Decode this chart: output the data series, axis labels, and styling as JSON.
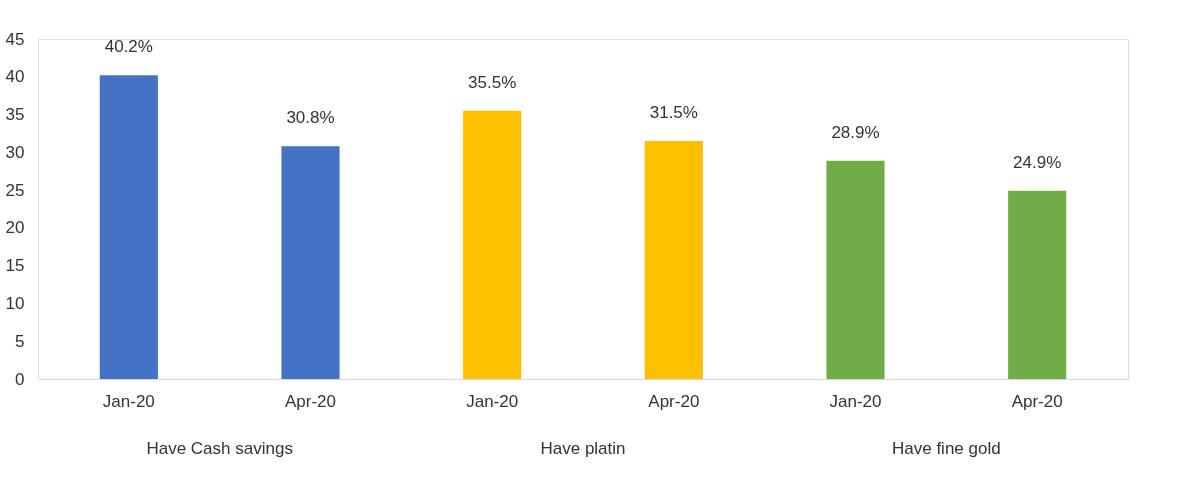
{
  "chart_data": {
    "type": "bar",
    "categories": [
      "Jan-20",
      "Apr-20",
      "Jan-20",
      "Apr-20",
      "Jan-20",
      "Apr-20"
    ],
    "values": [
      40.2,
      30.8,
      35.5,
      31.5,
      28.9,
      24.9
    ],
    "colors": [
      "#4472c4",
      "#4472c4",
      "#ffc000",
      "#ffc000",
      "#70ad47",
      "#70ad47"
    ],
    "value_labels": [
      "40.2%",
      "30.8%",
      "35.5%",
      "31.5%",
      "28.9%",
      "24.9%"
    ],
    "annotations": [
      "Have Cash savings",
      "Have platin",
      "Have fine gold"
    ],
    "ylim": [
      0,
      45
    ],
    "yticks": [
      0,
      5,
      10,
      15,
      20,
      25,
      30,
      35,
      40,
      45
    ],
    "grid": false
  }
}
